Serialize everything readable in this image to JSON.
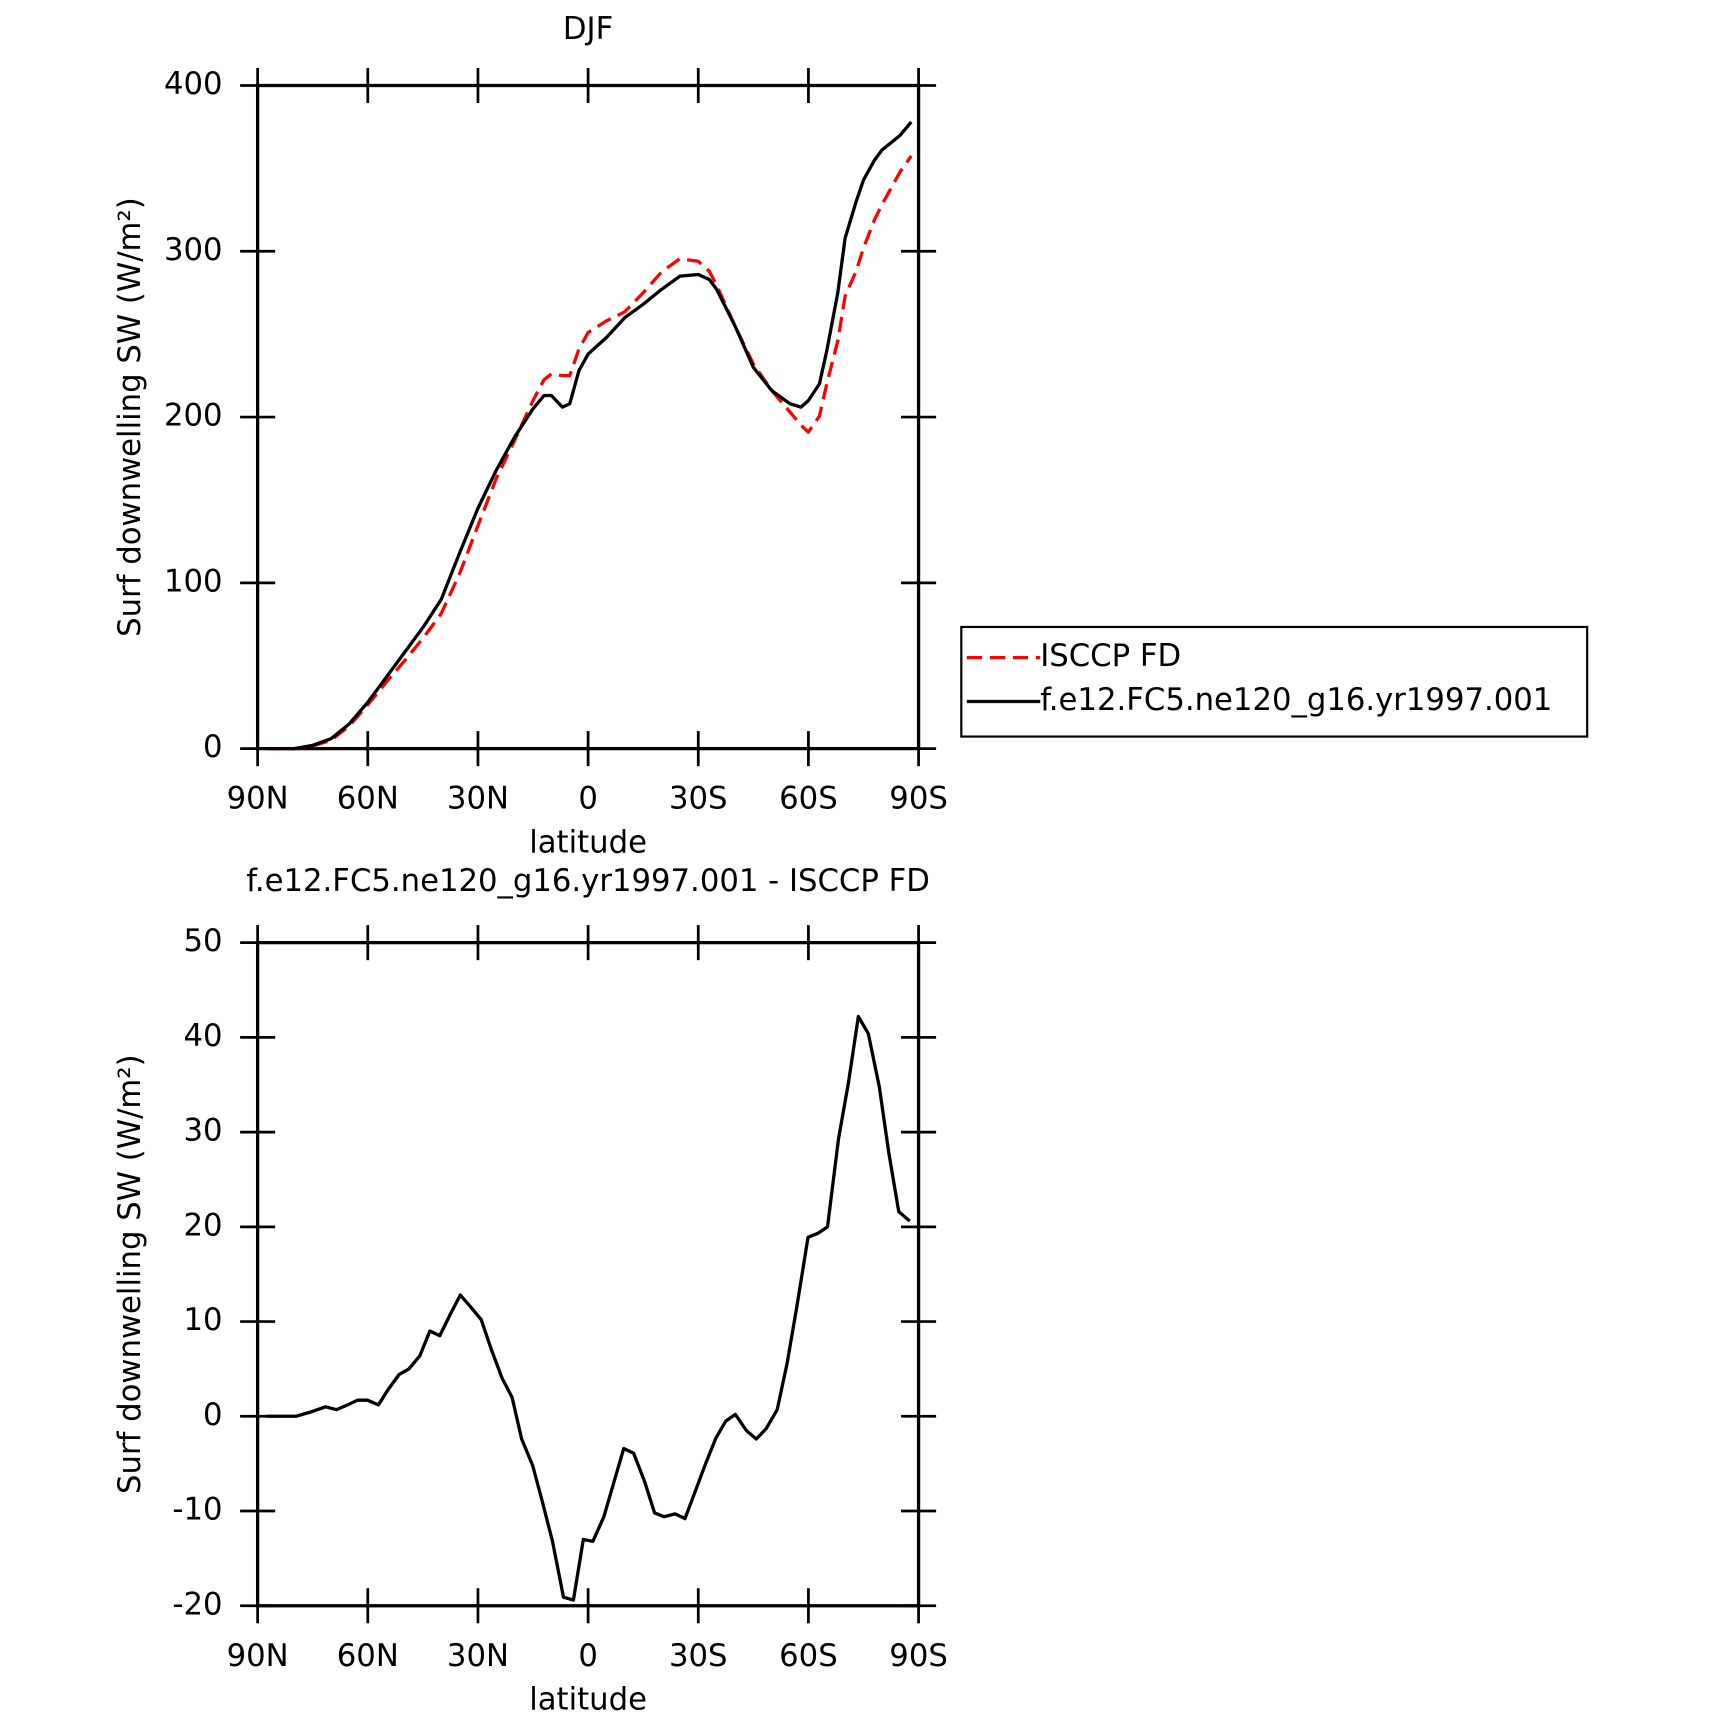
{
  "chart_data": [
    {
      "type": "line",
      "title": "DJF",
      "xlabel": "latitude",
      "ylabel": "Surf downwelling SW (W/m²)",
      "x": [
        87.5,
        80,
        75,
        70,
        65,
        60,
        55,
        50,
        45,
        40,
        35,
        30,
        25,
        20,
        15,
        12,
        10,
        7,
        5,
        2.5,
        0,
        -5,
        -10,
        -15,
        -20,
        -25,
        -30,
        -33,
        -35,
        -40,
        -45,
        -50,
        -55,
        -58,
        -60,
        -63,
        -65,
        -68,
        -70,
        -73,
        -75,
        -78,
        -80,
        -85,
        -88
      ],
      "series": [
        {
          "name": "ISCCP FD",
          "color": "#ff0000",
          "dash": true,
          "values": [
            0,
            0,
            1.6,
            5,
            13.8,
            26.5,
            40,
            53,
            66.5,
            81.5,
            105.5,
            134.5,
            163,
            186,
            210,
            222.5,
            226,
            225,
            225,
            241,
            251,
            258,
            263.5,
            275,
            287.5,
            295.5,
            294,
            288,
            279.5,
            255,
            232,
            216,
            203,
            195,
            191,
            200.5,
            220,
            246,
            273,
            288,
            302,
            319,
            328,
            348,
            357.5
          ]
        },
        {
          "name": "f.e12.FC5.ne120_g16.yr1997.001",
          "color": "#000000",
          "dash": false,
          "values": [
            0,
            0,
            2,
            6,
            15,
            28,
            43,
            58,
            73,
            90,
            118,
            145,
            168,
            188,
            205,
            213,
            213,
            206,
            208,
            228,
            238,
            248,
            260,
            268,
            277,
            285,
            286,
            283,
            277,
            255,
            230,
            216,
            208,
            206,
            210,
            220,
            240,
            275,
            308,
            330,
            343,
            355,
            361,
            370,
            378
          ]
        }
      ],
      "xlim": [
        90,
        -90
      ],
      "xticks": [
        {
          "value": 90,
          "label": "90N"
        },
        {
          "value": 60,
          "label": "60N"
        },
        {
          "value": 30,
          "label": "30N"
        },
        0,
        {
          "value": -30,
          "label": "30S"
        },
        {
          "value": -60,
          "label": "60S"
        },
        {
          "value": -90,
          "label": "90S"
        }
      ],
      "ylim": [
        0,
        400
      ],
      "yticks": [
        0,
        100,
        200,
        300,
        400
      ],
      "legend": "right"
    },
    {
      "type": "line",
      "title": "f.e12.FC5.ne120_g16.yr1997.001 - ISCCP FD",
      "xlabel": "latitude",
      "ylabel": "Surf downwelling SW (W/m²)",
      "x": [
        87.6,
        84.9,
        82.2,
        79.6,
        76.0,
        71.5,
        68.5,
        65.5,
        62.8,
        60.1,
        57.1,
        54.5,
        51.5,
        48.8,
        45.8,
        43.1,
        40.4,
        37.5,
        34.8,
        32.1,
        29.1,
        26.4,
        23.4,
        20.7,
        18.1,
        15.1,
        12.4,
        9.7,
        6.7,
        4.0,
        1.3,
        -1.3,
        -4.3,
        -7.0,
        -9.7,
        -12.4,
        -15.4,
        -18.1,
        -20.7,
        -23.7,
        -26.4,
        -29.1,
        -32.1,
        -34.8,
        -37.5,
        -40.1,
        -43.1,
        -45.8,
        -48.5,
        -51.5,
        -54.2,
        -56.9,
        -59.9,
        -62.5,
        -65.2,
        -68.2,
        -70.9,
        -73.6,
        -76.3,
        -79.3,
        -81.9,
        -84.6,
        -87.6
      ],
      "series": [
        {
          "color": "#000000",
          "dash": false,
          "values": [
            0,
            0,
            0,
            0,
            0.4,
            1,
            0.7,
            1.2,
            1.7,
            1.7,
            1.2,
            2.8,
            4.4,
            5,
            6.4,
            9,
            8.5,
            10.8,
            12.8,
            11.6,
            10.2,
            7.1,
            4,
            2,
            -2.4,
            -5.2,
            -9.1,
            -13.2,
            -19.1,
            -19.4,
            -13,
            -13.2,
            -10.6,
            -7,
            -3.4,
            -3.9,
            -6.9,
            -10.2,
            -10.6,
            -10.3,
            -10.8,
            -8,
            -4.9,
            -2.3,
            -0.5,
            0.2,
            -1.5,
            -2.4,
            -1.3,
            0.7,
            5.6,
            11.7,
            18.9,
            19.3,
            20,
            29.3,
            35.2,
            42.2,
            40.4,
            34.8,
            27.8,
            21.6,
            20.6
          ]
        }
      ],
      "xlim": [
        90,
        -90
      ],
      "xticks": [
        {
          "value": 90,
          "label": "90N"
        },
        {
          "value": 60,
          "label": "60N"
        },
        {
          "value": 30,
          "label": "30N"
        },
        0,
        {
          "value": -30,
          "label": "30S"
        },
        {
          "value": -60,
          "label": "60S"
        },
        {
          "value": -90,
          "label": "90S"
        }
      ],
      "ylim": [
        -20,
        50
      ],
      "yticks": [
        -20,
        -10,
        0,
        10,
        20,
        30,
        40,
        50
      ]
    }
  ]
}
